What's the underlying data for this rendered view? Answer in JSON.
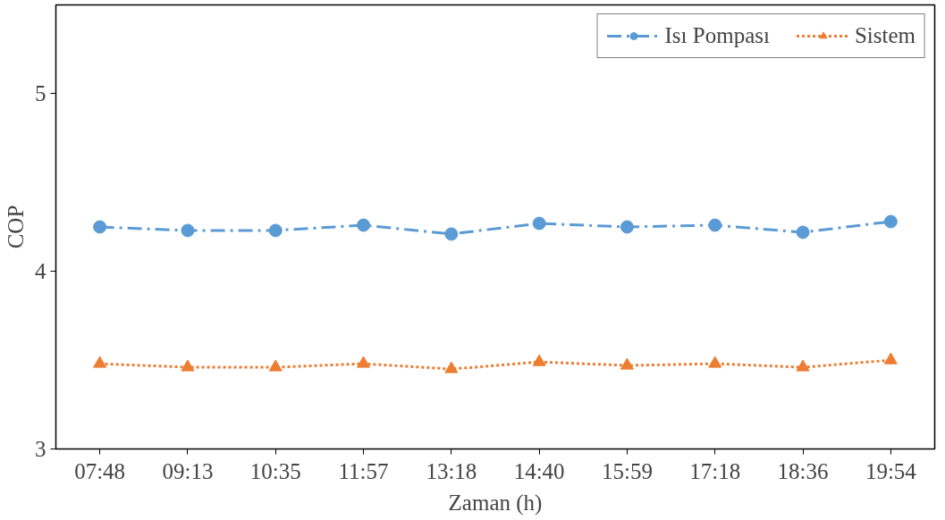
{
  "chart_data": {
    "type": "line",
    "xlabel": "Zaman (h)",
    "ylabel": "COP",
    "categories": [
      "07:48",
      "09:13",
      "10:35",
      "11:57",
      "13:18",
      "14:40",
      "15:59",
      "17:18",
      "18:36",
      "19:54"
    ],
    "ylim": [
      3,
      5.5
    ],
    "yticks": [
      3,
      4,
      5
    ],
    "grid": false,
    "legend": "top right",
    "series": [
      {
        "name": "Isı Pompası",
        "color": "#5b9bd5",
        "marker": "circle",
        "line_style": "dashed",
        "values": [
          4.25,
          4.23,
          4.23,
          4.26,
          4.21,
          4.27,
          4.25,
          4.26,
          4.22,
          4.28
        ]
      },
      {
        "name": "Sistem",
        "color": "#ed7d31",
        "marker": "triangle",
        "line_style": "dotted",
        "values": [
          3.48,
          3.46,
          3.46,
          3.48,
          3.45,
          3.49,
          3.47,
          3.48,
          3.46,
          3.5
        ]
      }
    ]
  }
}
